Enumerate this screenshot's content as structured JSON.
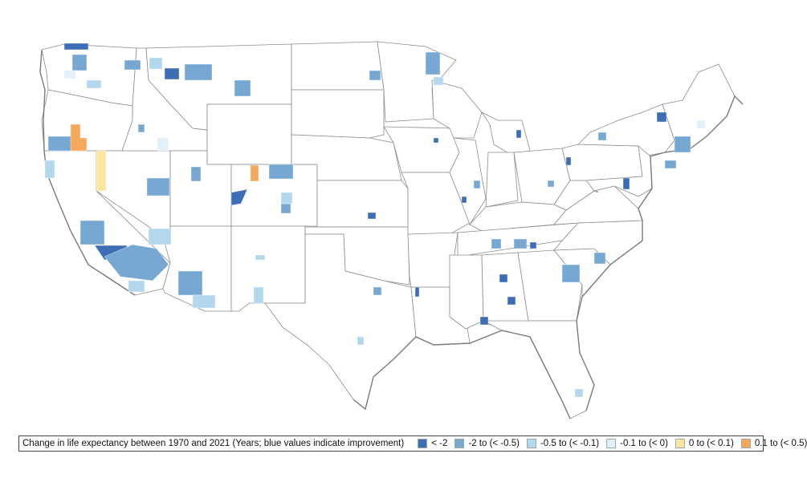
{
  "legend": {
    "title": "Change in life expectancy between 1970 and 2021 (Years; blue values indicate improvement)",
    "items": [
      {
        "label": "< -2",
        "color": "#3d6db5"
      },
      {
        "label": "-2 to (< -0.5)",
        "color": "#77a8d3"
      },
      {
        "label": "-0.5 to (< -0.1)",
        "color": "#b3d7ec"
      },
      {
        "label": "-0.1 to (< 0)",
        "color": "#e2f1f9"
      },
      {
        "label": "0 to (< 0.1)",
        "color": "#fde6a0"
      },
      {
        "label": "0.1 to (< 0.5)",
        "color": "#f6a85c"
      }
    ]
  }
}
